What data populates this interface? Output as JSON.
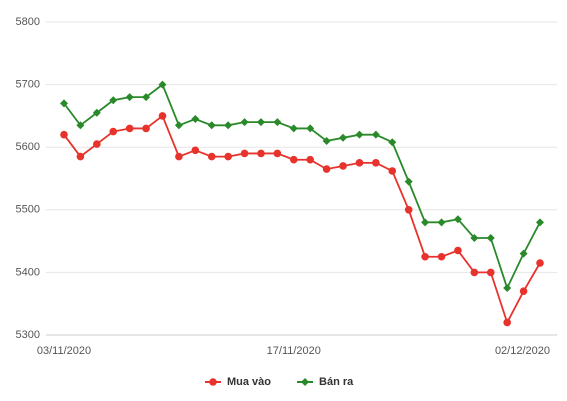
{
  "chart_data": {
    "type": "line",
    "categories": [
      "03/11/2020",
      null,
      null,
      null,
      null,
      null,
      null,
      null,
      null,
      null,
      null,
      null,
      null,
      null,
      "17/11/2020",
      null,
      null,
      null,
      null,
      null,
      null,
      null,
      null,
      null,
      null,
      null,
      null,
      null,
      null,
      "02/12/2020"
    ],
    "series": [
      {
        "name": "Mua vào",
        "color": "#e8322c",
        "marker": "circle",
        "values": [
          5620,
          5585,
          5605,
          5625,
          5630,
          5630,
          5650,
          5585,
          5595,
          5585,
          5585,
          5590,
          5590,
          5590,
          5580,
          5580,
          5565,
          5570,
          5575,
          5575,
          5562,
          5500,
          5425,
          5425,
          5435,
          5400,
          5400,
          5320,
          5370,
          5415
        ]
      },
      {
        "name": "Bán ra",
        "color": "#2a8a2a",
        "marker": "diamond",
        "values": [
          5670,
          5635,
          5655,
          5675,
          5680,
          5680,
          5700,
          5635,
          5645,
          5635,
          5635,
          5640,
          5640,
          5640,
          5630,
          5630,
          5610,
          5615,
          5620,
          5620,
          5608,
          5545,
          5480,
          5480,
          5485,
          5455,
          5455,
          5375,
          5430,
          5480
        ]
      }
    ],
    "ylim": [
      5300,
      5800
    ],
    "yticks": [
      5300,
      5400,
      5500,
      5600,
      5700,
      5800
    ],
    "grid": true,
    "legend": "bottom"
  }
}
